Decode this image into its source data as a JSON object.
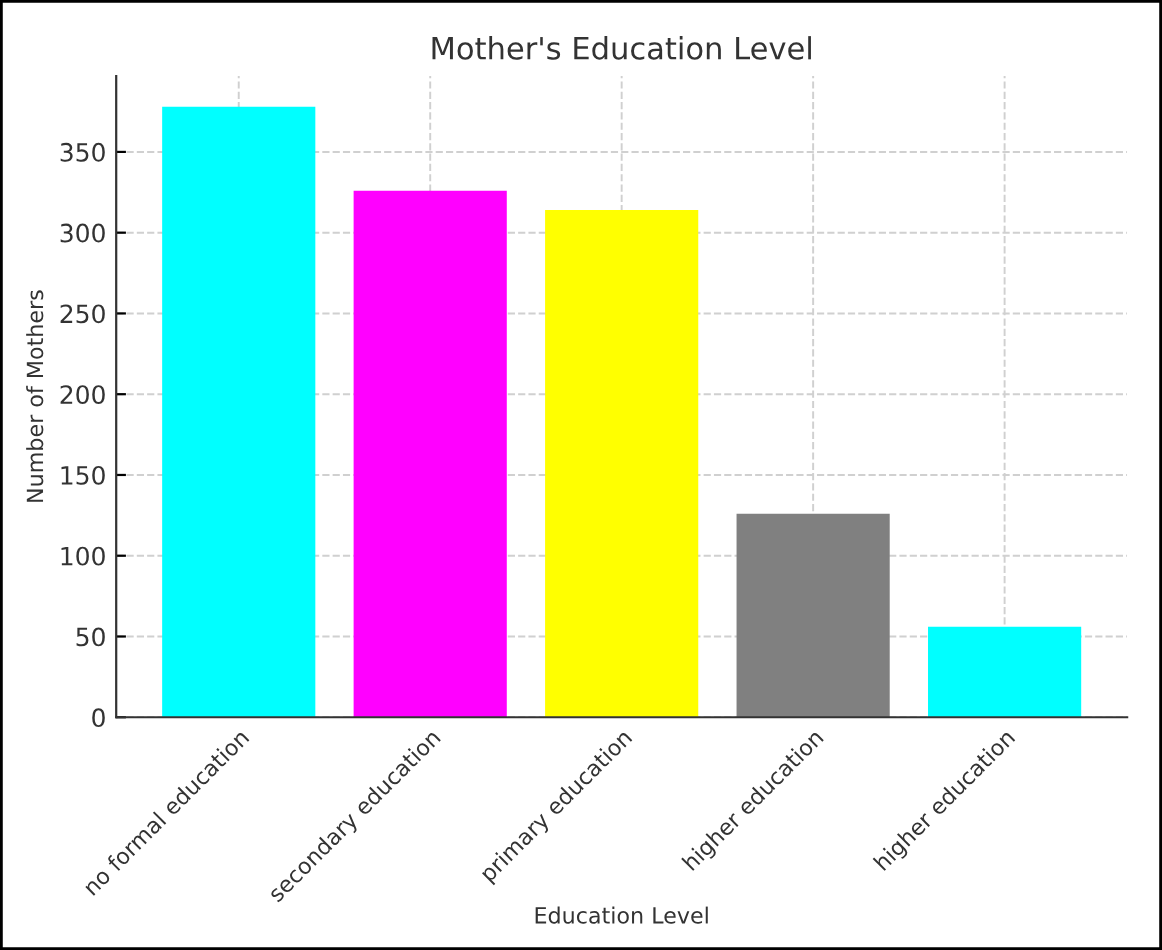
{
  "chart_data": {
    "type": "bar",
    "title": "Mother's Education Level",
    "xlabel": "Education Level",
    "ylabel": "Number of Mothers",
    "categories": [
      "no formal education",
      "secondary education",
      "primary education",
      "higher education",
      "higher education"
    ],
    "values": [
      378,
      326,
      314,
      126,
      56
    ],
    "colors": [
      "#00ffff",
      "#ff00ff",
      "#ffff00",
      "#808080",
      "#00ffff"
    ],
    "ylim": [
      0,
      397
    ],
    "yticks": [
      0,
      50,
      100,
      150,
      200,
      250,
      300,
      350
    ],
    "grid": true
  }
}
